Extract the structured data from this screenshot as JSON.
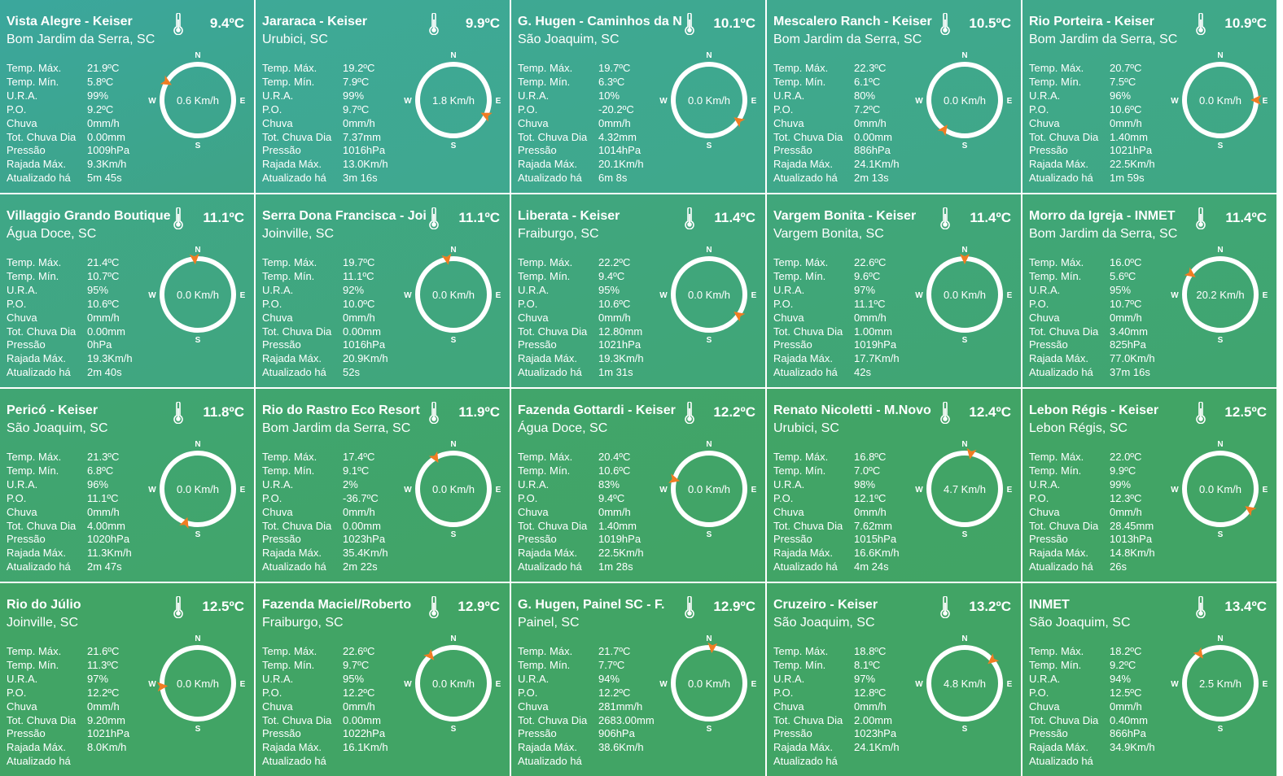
{
  "colors": {
    "card_start": "#3ea99b",
    "card_end": "#41a465",
    "compass_ring": "#ffffff",
    "wind_arrow": "#f07d23"
  },
  "compass_labels": {
    "n": "N",
    "s": "S",
    "e": "E",
    "w": "W"
  },
  "stat_labels": {
    "max": "Temp. Máx.",
    "min": "Temp. Mín.",
    "ura": "U.R.A.",
    "po": "P.O.",
    "rain": "Chuva",
    "rain_day": "Tot. Chuva Dia",
    "pressure": "Pressão",
    "gust": "Rajada Máx.",
    "updated": "Atualizado há"
  },
  "stations": [
    {
      "name": "Vista Alegre - Keiser",
      "location": "Bom Jardim da Serra, SC",
      "temp": "9.4ºC",
      "max": "21.9ºC",
      "min": "5.8ºC",
      "ura": "99%",
      "po": "9.2ºC",
      "rain": "0mm/h",
      "rain_day": "0.00mm",
      "pressure": "1009hPa",
      "gust": "9.3Km/h",
      "updated": "5m 45s",
      "wind_speed": "0.6 Km/h",
      "wind_dir": 300,
      "selected": true
    },
    {
      "name": "Jararaca - Keiser",
      "location": "Urubici, SC",
      "temp": "9.9ºC",
      "max": "19.2ºC",
      "min": "7.9ºC",
      "ura": "99%",
      "po": "9.7ºC",
      "rain": "0mm/h",
      "rain_day": "7.37mm",
      "pressure": "1016hPa",
      "gust": "13.0Km/h",
      "updated": "3m 16s",
      "wind_speed": "1.8 Km/h",
      "wind_dir": 115
    },
    {
      "name": "G. Hugen - Caminhos da Neve",
      "location": "São Joaquim, SC",
      "temp": "10.1ºC",
      "max": "19.7ºC",
      "min": "6.3ºC",
      "ura": "10%",
      "po": "-20.2ºC",
      "rain": "0mm/h",
      "rain_day": "4.32mm",
      "pressure": "1014hPa",
      "gust": "20.1Km/h",
      "updated": "6m 8s",
      "wind_speed": "0.0 Km/h",
      "wind_dir": 125
    },
    {
      "name": "Mescalero Ranch - Keiser",
      "location": "Bom Jardim da Serra, SC",
      "temp": "10.5ºC",
      "max": "22.3ºC",
      "min": "6.1ºC",
      "ura": "80%",
      "po": "7.2ºC",
      "rain": "0mm/h",
      "rain_day": "0.00mm",
      "pressure": "886hPa",
      "gust": "24.1Km/h",
      "updated": "2m 13s",
      "wind_speed": "0.0 Km/h",
      "wind_dir": 215
    },
    {
      "name": "Rio Porteira - Keiser",
      "location": "Bom Jardim da Serra, SC",
      "temp": "10.9ºC",
      "max": "20.7ºC",
      "min": "7.5ºC",
      "ura": "96%",
      "po": "10.6ºC",
      "rain": "0mm/h",
      "rain_day": "1.40mm",
      "pressure": "1021hPa",
      "gust": "22.5Km/h",
      "updated": "1m 59s",
      "wind_speed": "0.0 Km/h",
      "wind_dir": 90
    },
    {
      "name": "Villaggio Grando Boutique",
      "location": "Água Doce, SC",
      "temp": "11.1ºC",
      "max": "21.4ºC",
      "min": "10.7ºC",
      "ura": "95%",
      "po": "10.6ºC",
      "rain": "0mm/h",
      "rain_day": "0.00mm",
      "pressure": "0hPa",
      "gust": "19.3Km/h",
      "updated": "2m 40s",
      "wind_speed": "0.0 Km/h",
      "wind_dir": 355
    },
    {
      "name": "Serra Dona Francisca - Joinville",
      "location": "Joinville, SC",
      "temp": "11.1ºC",
      "max": "19.7ºC",
      "min": "11.1ºC",
      "ura": "92%",
      "po": "10.0ºC",
      "rain": "0mm/h",
      "rain_day": "0.00mm",
      "pressure": "1016hPa",
      "gust": "20.9Km/h",
      "updated": "52s",
      "wind_speed": "0.0 Km/h",
      "wind_dir": 350
    },
    {
      "name": "Liberata - Keiser",
      "location": "Fraiburgo, SC",
      "temp": "11.4ºC",
      "max": "22.2ºC",
      "min": "9.4ºC",
      "ura": "95%",
      "po": "10.6ºC",
      "rain": "0mm/h",
      "rain_day": "12.80mm",
      "pressure": "1021hPa",
      "gust": "19.3Km/h",
      "updated": "1m 31s",
      "wind_speed": "0.0 Km/h",
      "wind_dir": 125
    },
    {
      "name": "Vargem Bonita - Keiser",
      "location": "Vargem Bonita, SC",
      "temp": "11.4ºC",
      "max": "22.6ºC",
      "min": "9.6ºC",
      "ura": "97%",
      "po": "11.1ºC",
      "rain": "0mm/h",
      "rain_day": "1.00mm",
      "pressure": "1019hPa",
      "gust": "17.7Km/h",
      "updated": "42s",
      "wind_speed": "0.0 Km/h",
      "wind_dir": 0
    },
    {
      "name": "Morro da Igreja - INMET",
      "location": "Bom Jardim da Serra, SC",
      "temp": "11.4ºC",
      "max": "16.0ºC",
      "min": "5.6ºC",
      "ura": "95%",
      "po": "10.7ºC",
      "rain": "0mm/h",
      "rain_day": "3.40mm",
      "pressure": "825hPa",
      "gust": "77.0Km/h",
      "updated": "37m 16s",
      "wind_speed": "20.2 Km/h",
      "wind_dir": 305
    },
    {
      "name": "Pericó - Keiser",
      "location": "São Joaquim, SC",
      "temp": "11.8ºC",
      "max": "21.3ºC",
      "min": "6.8ºC",
      "ura": "96%",
      "po": "11.1ºC",
      "rain": "0mm/h",
      "rain_day": "4.00mm",
      "pressure": "1020hPa",
      "gust": "11.3Km/h",
      "updated": "2m 47s",
      "wind_speed": "0.0 Km/h",
      "wind_dir": 200
    },
    {
      "name": "Rio do Rastro Eco Resort",
      "location": "Bom Jardim da Serra, SC",
      "temp": "11.9ºC",
      "max": "17.4ºC",
      "min": "9.1ºC",
      "ura": "2%",
      "po": "-36.7ºC",
      "rain": "0mm/h",
      "rain_day": "0.00mm",
      "pressure": "1023hPa",
      "gust": "35.4Km/h",
      "updated": "2m 22s",
      "wind_speed": "0.0 Km/h",
      "wind_dir": 330
    },
    {
      "name": "Fazenda Gottardi - Keiser",
      "location": "Água Doce, SC",
      "temp": "12.2ºC",
      "max": "20.4ºC",
      "min": "10.6ºC",
      "ura": "83%",
      "po": "9.4ºC",
      "rain": "0mm/h",
      "rain_day": "1.40mm",
      "pressure": "1019hPa",
      "gust": "22.5Km/h",
      "updated": "1m 28s",
      "wind_speed": "0.0 Km/h",
      "wind_dir": 285
    },
    {
      "name": "Renato Nicoletti - M.Novo",
      "location": "Urubici, SC",
      "temp": "12.4ºC",
      "max": "16.8ºC",
      "min": "7.0ºC",
      "ura": "98%",
      "po": "12.1ºC",
      "rain": "0mm/h",
      "rain_day": "7.62mm",
      "pressure": "1015hPa",
      "gust": "16.6Km/h",
      "updated": "4m 24s",
      "wind_speed": "4.7 Km/h",
      "wind_dir": 10
    },
    {
      "name": "Lebon Régis - Keiser",
      "location": "Lebon Régis, SC",
      "temp": "12.5ºC",
      "max": "22.0ºC",
      "min": "9.9ºC",
      "ura": "99%",
      "po": "12.3ºC",
      "rain": "0mm/h",
      "rain_day": "28.45mm",
      "pressure": "1013hPa",
      "gust": "14.8Km/h",
      "updated": "26s",
      "wind_speed": "0.0 Km/h",
      "wind_dir": 125
    },
    {
      "name": "Rio do Júlio",
      "location": "Joinville, SC",
      "temp": "12.5ºC",
      "max": "21.6ºC",
      "min": "11.3ºC",
      "ura": "97%",
      "po": "12.2ºC",
      "rain": "0mm/h",
      "rain_day": "9.20mm",
      "pressure": "1021hPa",
      "gust": "8.0Km/h",
      "updated": "",
      "wind_speed": "0.0 Km/h",
      "wind_dir": 265
    },
    {
      "name": "Fazenda Maciel/Roberto",
      "location": "Fraiburgo, SC",
      "temp": "12.9ºC",
      "max": "22.6ºC",
      "min": "9.7ºC",
      "ura": "95%",
      "po": "12.2ºC",
      "rain": "0mm/h",
      "rain_day": "0.00mm",
      "pressure": "1022hPa",
      "gust": "16.1Km/h",
      "updated": "",
      "wind_speed": "0.0 Km/h",
      "wind_dir": 320
    },
    {
      "name": "G. Hugen, Painel SC - F.",
      "location": "Painel, SC",
      "temp": "12.9ºC",
      "max": "21.7ºC",
      "min": "7.7ºC",
      "ura": "94%",
      "po": "12.2ºC",
      "rain": "281mm/h",
      "rain_day": "2683.00mm",
      "pressure": "906hPa",
      "gust": "38.6Km/h",
      "updated": "",
      "wind_speed": "0.0 Km/h",
      "wind_dir": 5
    },
    {
      "name": "Cruzeiro - Keiser",
      "location": "São Joaquim, SC",
      "temp": "13.2ºC",
      "max": "18.8ºC",
      "min": "8.1ºC",
      "ura": "97%",
      "po": "12.8ºC",
      "rain": "0mm/h",
      "rain_day": "2.00mm",
      "pressure": "1023hPa",
      "gust": "24.1Km/h",
      "updated": "",
      "wind_speed": "4.8 Km/h",
      "wind_dir": 50
    },
    {
      "name": "INMET",
      "location": "São Joaquim, SC",
      "temp": "13.4ºC",
      "max": "18.2ºC",
      "min": "9.2ºC",
      "ura": "94%",
      "po": "12.5ºC",
      "rain": "0mm/h",
      "rain_day": "0.40mm",
      "pressure": "866hPa",
      "gust": "34.9Km/h",
      "updated": "",
      "wind_speed": "2.5 Km/h",
      "wind_dir": 325
    }
  ]
}
